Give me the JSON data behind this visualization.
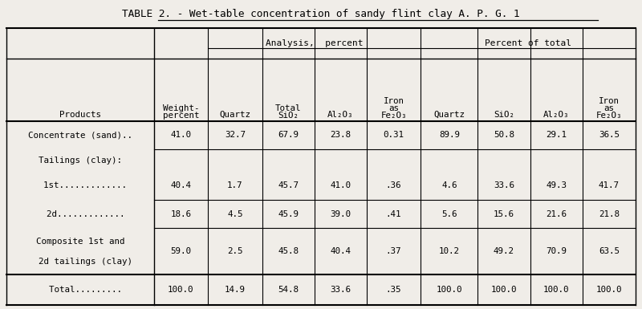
{
  "title": "TABLE 2. - Wet-table concentration of sandy flint clay A. P. G. 1",
  "title_underline_start": "Wet-table",
  "bg_color": "#f0ede8",
  "header_group1": "Analysis,  percent",
  "header_group2": "Percent of total",
  "col_headers_line1": [
    "",
    "Weight-",
    "",
    "Total",
    "",
    "Iron",
    "",
    "",
    "",
    "Iron"
  ],
  "col_headers_line2": [
    "Products",
    "percent",
    "Quartz",
    "SiO₂",
    "Al₂O₃",
    "as",
    "Quartz",
    "SiO₂",
    "Al₂O₃",
    "as"
  ],
  "col_headers_line3": [
    "",
    "",
    "",
    "",
    "",
    "Fe₂O₃",
    "",
    "",
    "",
    "Fe₂O₃"
  ],
  "data_fmt": [
    [
      "41.0",
      "32.7",
      "67.9",
      "23.8",
      "0.31",
      "89.9",
      "50.8",
      "29.1",
      "36.5"
    ],
    [
      "40.4",
      "1.7",
      "45.7",
      "41.0",
      ".36",
      "4.6",
      "33.6",
      "49.3",
      "41.7"
    ],
    [
      "18.6",
      "4.5",
      "45.9",
      "39.0",
      ".41",
      "5.6",
      "15.6",
      "21.6",
      "21.8"
    ],
    [
      "59.0",
      "2.5",
      "45.8",
      "40.4",
      ".37",
      "10.2",
      "49.2",
      "70.9",
      "63.5"
    ],
    [
      "100.0",
      "14.9",
      "54.8",
      "33.6",
      ".35",
      "100.0",
      "100.0",
      "100.0",
      "100.0"
    ]
  ],
  "row_labels": [
    [
      "Concentrate (sand).."
    ],
    [
      "Tailings (clay):"
    ],
    [
      "  1st............."
    ],
    [
      "  2d............."
    ],
    [
      "Composite 1st and",
      "  2d tailings (clay)"
    ],
    [
      "  Total........."
    ]
  ],
  "row_data_index": [
    0,
    -1,
    1,
    2,
    3,
    4
  ],
  "font_size": 7.8,
  "title_font_size": 9.2
}
